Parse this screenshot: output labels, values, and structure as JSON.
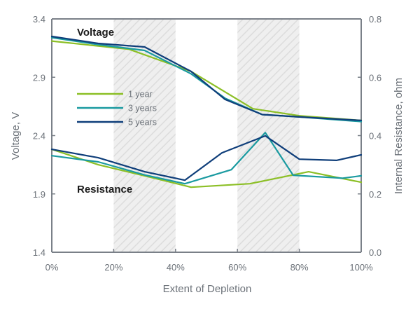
{
  "chart_data": {
    "type": "line",
    "title": "",
    "xlabel": "Extent of Depletion",
    "ylabel_left": "Voltage, V",
    "ylabel_right": "Internal Resistance, ohm",
    "xlim": [
      0,
      100
    ],
    "ylim_left": [
      1.4,
      3.4
    ],
    "ylim_right": [
      0.0,
      0.8
    ],
    "x_ticks": [
      0,
      20,
      40,
      60,
      80,
      100
    ],
    "x_tick_labels": [
      "0%",
      "20%",
      "40%",
      "60%",
      "80%",
      "100%"
    ],
    "y_left_ticks": [
      3.4,
      2.9,
      2.4,
      1.9,
      1.4
    ],
    "y_left_tick_labels": [
      "3.4",
      "2.9",
      "2.4",
      "1.9",
      "1.4"
    ],
    "y_right_ticks": [
      0.8,
      0.6,
      0.4,
      0.2,
      0.0
    ],
    "y_right_tick_labels": [
      "0.8",
      "0.6",
      "0.4",
      "0.2",
      "0.0"
    ],
    "shaded_bands": [
      [
        20,
        40
      ],
      [
        60,
        80
      ]
    ],
    "annotations": {
      "voltage": "Voltage",
      "resistance": "Resistance"
    },
    "legend": {
      "placement": "center-left",
      "entries": [
        "1 year",
        "3 years",
        "5 years"
      ]
    },
    "colors": {
      "1 year": "#8cbf26",
      "3 years": "#1a9aa0",
      "5 years": "#0f3e7a",
      "axis": "#7a8088",
      "band": "#ececec",
      "hatch": "#dadada"
    },
    "series": [
      {
        "name": "1 year",
        "group": "voltage",
        "axis": "left",
        "x": [
          0,
          25,
          45,
          65,
          80,
          100
        ],
        "y": [
          3.21,
          3.14,
          2.95,
          2.63,
          2.57,
          2.53
        ]
      },
      {
        "name": "3 years",
        "group": "voltage",
        "axis": "left",
        "x": [
          0,
          15,
          30,
          45,
          56,
          68,
          80,
          100
        ],
        "y": [
          3.24,
          3.18,
          3.13,
          2.93,
          2.72,
          2.58,
          2.56,
          2.52
        ]
      },
      {
        "name": "5 years",
        "group": "voltage",
        "axis": "left",
        "x": [
          0,
          15,
          30,
          45,
          56,
          68,
          80,
          100
        ],
        "y": [
          3.25,
          3.19,
          3.16,
          2.95,
          2.71,
          2.58,
          2.56,
          2.53
        ]
      },
      {
        "name": "1 year",
        "group": "resistance",
        "axis": "right",
        "x": [
          0,
          15,
          30,
          45,
          64,
          83,
          100
        ],
        "y": [
          0.353,
          0.3,
          0.262,
          0.223,
          0.235,
          0.276,
          0.24
        ]
      },
      {
        "name": "3 years",
        "group": "resistance",
        "axis": "right",
        "x": [
          0,
          15,
          30,
          43,
          58,
          69,
          78,
          94,
          100
        ],
        "y": [
          0.331,
          0.31,
          0.265,
          0.235,
          0.283,
          0.41,
          0.264,
          0.254,
          0.262
        ]
      },
      {
        "name": "5 years",
        "group": "resistance",
        "axis": "right",
        "x": [
          0,
          15,
          30,
          43,
          55,
          69,
          80,
          92,
          100
        ],
        "y": [
          0.353,
          0.324,
          0.276,
          0.247,
          0.341,
          0.399,
          0.319,
          0.315,
          0.334
        ]
      }
    ]
  }
}
